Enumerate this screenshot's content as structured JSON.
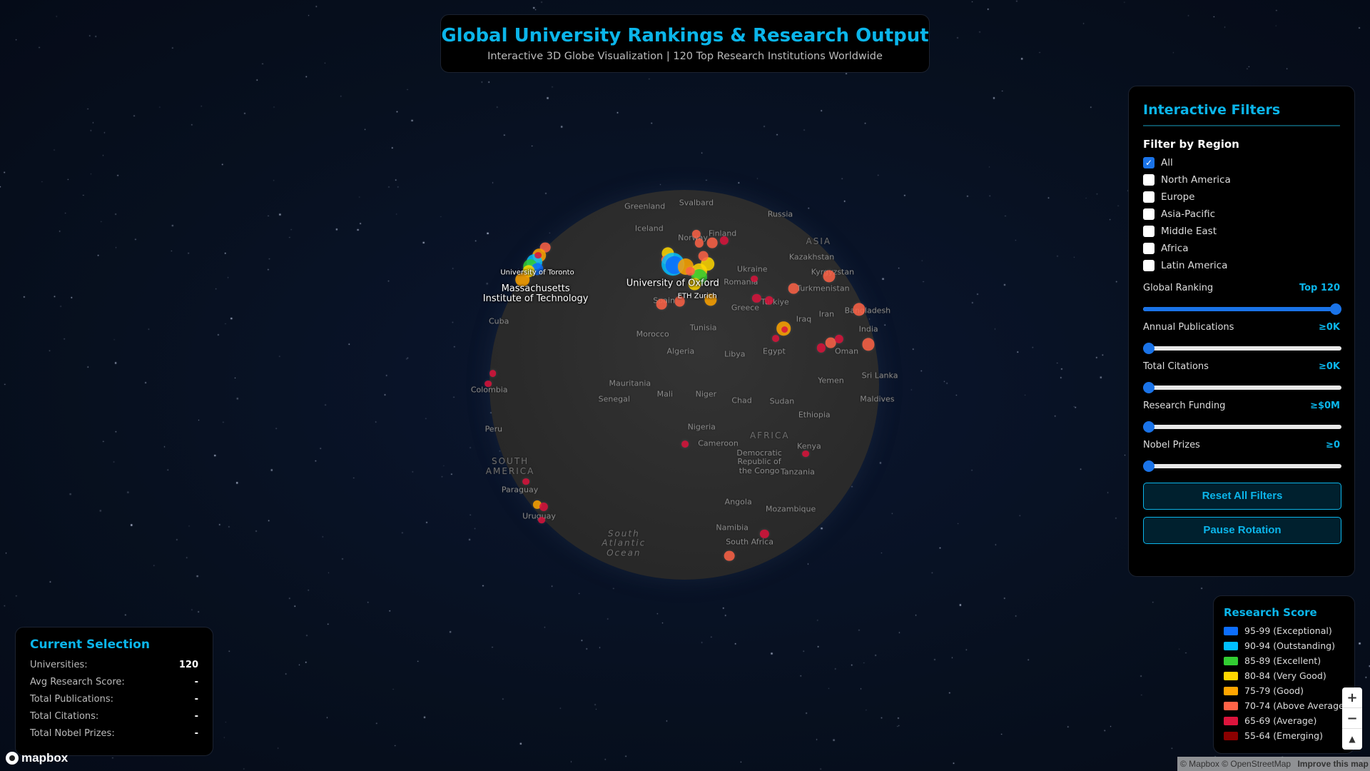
{
  "header": {
    "title": "Global University Rankings & Research Output",
    "subtitle": "Interactive 3D Globe Visualization | 120 Top Research Institutions Worldwide"
  },
  "filters": {
    "title": "Interactive Filters",
    "region_heading": "Filter by Region",
    "regions": [
      {
        "label": "All",
        "checked": true
      },
      {
        "label": "North America",
        "checked": false
      },
      {
        "label": "Europe",
        "checked": false
      },
      {
        "label": "Asia-Pacific",
        "checked": false
      },
      {
        "label": "Middle East",
        "checked": false
      },
      {
        "label": "Africa",
        "checked": false
      },
      {
        "label": "Latin America",
        "checked": false
      }
    ],
    "sliders": [
      {
        "label": "Global Ranking",
        "value_text": "Top 120",
        "fraction": 1.0
      },
      {
        "label": "Annual Publications",
        "value_text": "≥0K",
        "fraction": 0
      },
      {
        "label": "Total Citations",
        "value_text": "≥0K",
        "fraction": 0
      },
      {
        "label": "Research Funding",
        "value_text": "≥$0M",
        "fraction": 0
      },
      {
        "label": "Nobel Prizes",
        "value_text": "≥0",
        "fraction": 0
      }
    ],
    "reset_label": "Reset All Filters",
    "pause_label": "Pause Rotation"
  },
  "legend": {
    "title": "Research Score",
    "items": [
      {
        "label": "95-99 (Exceptional)",
        "color": "#0d6efd"
      },
      {
        "label": "90-94 (Outstanding)",
        "color": "#00bfff"
      },
      {
        "label": "85-89 (Excellent)",
        "color": "#32cd32"
      },
      {
        "label": "80-84 (Very Good)",
        "color": "#ffd700"
      },
      {
        "label": "75-79 (Good)",
        "color": "#ffa500"
      },
      {
        "label": "70-74 (Above Average)",
        "color": "#ff6347"
      },
      {
        "label": "65-69 (Average)",
        "color": "#dc143c"
      },
      {
        "label": "55-64 (Emerging)",
        "color": "#8b0000"
      }
    ]
  },
  "selection": {
    "title": "Current Selection",
    "rows": [
      {
        "label": "Universities:",
        "value": "120"
      },
      {
        "label": "Avg Research Score:",
        "value": "-"
      },
      {
        "label": "Total Publications:",
        "value": "-"
      },
      {
        "label": "Total Citations:",
        "value": "-"
      },
      {
        "label": "Total Nobel Prizes:",
        "value": "-"
      }
    ]
  },
  "map": {
    "university_labels": [
      "University of Toronto",
      "Massachusetts Institute of Technology",
      "University of Oxford",
      "ETH Zurich"
    ],
    "place_labels": [
      "Greenland",
      "Svalbard",
      "Russia",
      "Iceland",
      "Finland",
      "Norway",
      "ASIA",
      "Kazakhstan",
      "Kyrgyzstan",
      "Ukraine",
      "Romania",
      "Turkmenistan",
      "Greece",
      "Türkiye",
      "Iran",
      "Bangladesh",
      "Iraq",
      "India",
      "Oman",
      "Yemen",
      "Sri Lanka",
      "Maldives",
      "Morocco",
      "Tunisia",
      "Libya",
      "Egypt",
      "Algeria",
      "Mauritania",
      "Mali",
      "Niger",
      "Chad",
      "Sudan",
      "Ethiopia",
      "Senegal",
      "Nigeria",
      "AFRICA",
      "Cameroon",
      "Kenya",
      "Democratic Republic of the Congo",
      "Tanzania",
      "Angola",
      "Mozambique",
      "Namibia",
      "South Africa",
      "South Atlantic Ocean",
      "Cuba",
      "Colombia",
      "Peru",
      "SOUTH AMERICA",
      "Paraguay",
      "Uruguay",
      "Spain"
    ],
    "zoom_in": "+",
    "zoom_out": "−",
    "compass": "▲",
    "logo_text": "mapbox",
    "attribution": "© Mapbox © OpenStreetMap",
    "improve_link": "Improve this map"
  }
}
